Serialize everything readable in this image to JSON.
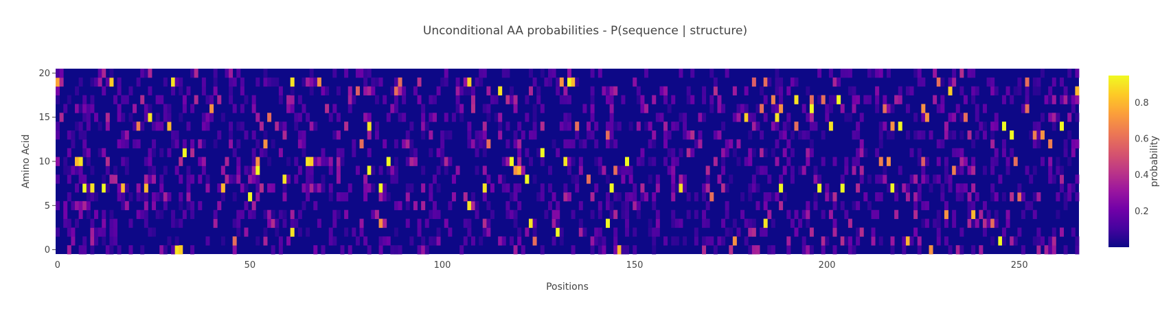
{
  "chart_data": {
    "type": "heatmap",
    "title": "Unconditional AA probabilities - P(sequence | structure)",
    "xlabel": "Positions",
    "ylabel": "Amino Acid",
    "colorbar_title": "probability",
    "n_positions": 266,
    "n_amino_acids": 21,
    "xlim": [
      0,
      265
    ],
    "ylim": [
      0,
      20
    ],
    "x_ticks": [
      0,
      50,
      100,
      150,
      200,
      250
    ],
    "y_ticks": [
      0,
      5,
      10,
      15,
      20
    ],
    "colorbar_range": [
      0,
      0.95
    ],
    "colorbar_ticks": [
      0.2,
      0.4,
      0.6,
      0.8
    ],
    "colorscale": "plasma",
    "peaks": [
      [
        0,
        19,
        0.75
      ],
      [
        14,
        19,
        0.85
      ],
      [
        30,
        19,
        0.9
      ],
      [
        61,
        19,
        0.9
      ],
      [
        68,
        19,
        0.7
      ],
      [
        89,
        19,
        0.6
      ],
      [
        107,
        19,
        0.85
      ],
      [
        131,
        19,
        0.7
      ],
      [
        133,
        19,
        0.95
      ],
      [
        134,
        19,
        0.8
      ],
      [
        181,
        19,
        0.55
      ],
      [
        184,
        19,
        0.6
      ],
      [
        229,
        19,
        0.6
      ],
      [
        252,
        19,
        0.6
      ],
      [
        78,
        18,
        0.55
      ],
      [
        88,
        18,
        0.6
      ],
      [
        115,
        18,
        0.9
      ],
      [
        232,
        18,
        0.85
      ],
      [
        265,
        18,
        0.8
      ],
      [
        186,
        17,
        0.65
      ],
      [
        192,
        17,
        0.9
      ],
      [
        196,
        17,
        0.6
      ],
      [
        199,
        17,
        0.6
      ],
      [
        203,
        17,
        0.95
      ],
      [
        40,
        16,
        0.7
      ],
      [
        183,
        16,
        0.6
      ],
      [
        188,
        16,
        0.7
      ],
      [
        196,
        16,
        0.95
      ],
      [
        215,
        16,
        0.6
      ],
      [
        225,
        16,
        0.7
      ],
      [
        252,
        16,
        0.6
      ],
      [
        24,
        15,
        0.9
      ],
      [
        55,
        15,
        0.6
      ],
      [
        179,
        15,
        0.85
      ],
      [
        187,
        15,
        0.9
      ],
      [
        226,
        15,
        0.7
      ],
      [
        236,
        15,
        0.6
      ],
      [
        21,
        14,
        0.65
      ],
      [
        29,
        14,
        0.8
      ],
      [
        81,
        14,
        0.9
      ],
      [
        135,
        14,
        0.6
      ],
      [
        192,
        14,
        0.6
      ],
      [
        201,
        14,
        0.9
      ],
      [
        217,
        14,
        0.7
      ],
      [
        219,
        14,
        0.95
      ],
      [
        246,
        14,
        0.95
      ],
      [
        261,
        14,
        0.95
      ],
      [
        143,
        13,
        0.6
      ],
      [
        248,
        13,
        0.95
      ],
      [
        254,
        13,
        0.65
      ],
      [
        256,
        13,
        0.7
      ],
      [
        54,
        12,
        0.7
      ],
      [
        79,
        12,
        0.6
      ],
      [
        112,
        12,
        0.6
      ],
      [
        258,
        12,
        0.65
      ],
      [
        33,
        11,
        0.95
      ],
      [
        126,
        11,
        0.95
      ],
      [
        5,
        10,
        0.8
      ],
      [
        6,
        10,
        0.9
      ],
      [
        52,
        10,
        0.7
      ],
      [
        65,
        10,
        0.9
      ],
      [
        66,
        10,
        0.85
      ],
      [
        86,
        10,
        0.95
      ],
      [
        118,
        10,
        0.95
      ],
      [
        132,
        10,
        0.9
      ],
      [
        148,
        10,
        0.95
      ],
      [
        214,
        10,
        0.65
      ],
      [
        216,
        10,
        0.7
      ],
      [
        225,
        10,
        0.55
      ],
      [
        249,
        10,
        0.6
      ],
      [
        52,
        9,
        0.95
      ],
      [
        81,
        9,
        0.95
      ],
      [
        119,
        9,
        0.7
      ],
      [
        120,
        9,
        0.8
      ],
      [
        145,
        9,
        0.6
      ],
      [
        233,
        9,
        0.65
      ],
      [
        59,
        8,
        0.9
      ],
      [
        122,
        8,
        0.95
      ],
      [
        138,
        8,
        0.6
      ],
      [
        7,
        7,
        0.95
      ],
      [
        9,
        7,
        0.9
      ],
      [
        12,
        7,
        0.95
      ],
      [
        17,
        7,
        0.8
      ],
      [
        23,
        7,
        0.8
      ],
      [
        43,
        7,
        0.8
      ],
      [
        84,
        7,
        0.95
      ],
      [
        111,
        7,
        0.9
      ],
      [
        144,
        7,
        0.95
      ],
      [
        162,
        7,
        0.9
      ],
      [
        188,
        7,
        0.95
      ],
      [
        198,
        7,
        0.95
      ],
      [
        204,
        7,
        0.95
      ],
      [
        217,
        7,
        0.95
      ],
      [
        50,
        6,
        0.95
      ],
      [
        170,
        6,
        0.6
      ],
      [
        250,
        6,
        0.6
      ],
      [
        107,
        5,
        0.9
      ],
      [
        231,
        4,
        0.7
      ],
      [
        238,
        4,
        0.8
      ],
      [
        84,
        3,
        0.7
      ],
      [
        123,
        3,
        0.9
      ],
      [
        143,
        3,
        0.95
      ],
      [
        184,
        3,
        0.9
      ],
      [
        243,
        3,
        0.6
      ],
      [
        61,
        2,
        0.9
      ],
      [
        130,
        2,
        0.95
      ],
      [
        46,
        1,
        0.6
      ],
      [
        124,
        1,
        0.6
      ],
      [
        176,
        1,
        0.7
      ],
      [
        221,
        1,
        0.8
      ],
      [
        245,
        1,
        0.95
      ],
      [
        31,
        0,
        0.9
      ],
      [
        32,
        0,
        0.85
      ],
      [
        146,
        0,
        0.8
      ],
      [
        227,
        0,
        0.7
      ]
    ]
  }
}
